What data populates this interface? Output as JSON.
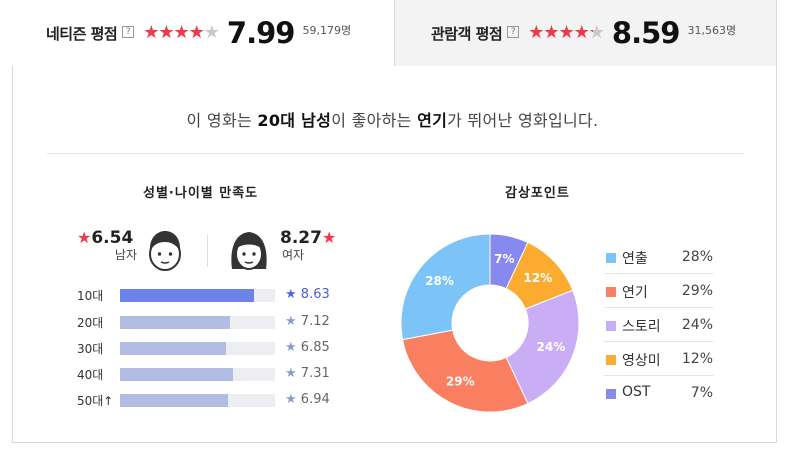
{
  "netizen": {
    "label": "네티즌 평점",
    "help": "?",
    "stars": "★★★★★",
    "rating": 7.99,
    "score": "7.99",
    "count": "59,179명"
  },
  "audience": {
    "label": "관람객 평점",
    "help": "?",
    "stars": "★★★★★",
    "rating": 8.59,
    "score": "8.59",
    "count": "31,563명"
  },
  "headline": {
    "pre": "이 영화는 ",
    "group": "20대 남성",
    "mid": "이 좋아하는 ",
    "point": "연기",
    "post": "가 뛰어난 영화입니다."
  },
  "satisfaction": {
    "title": "성별·나이별 만족도",
    "male": {
      "star": "★",
      "score": "6.54",
      "label": "남자"
    },
    "female": {
      "star": "★",
      "score": "8.27",
      "label": "여자"
    },
    "ages": [
      {
        "label": "10대",
        "star": "★",
        "score": "8.63",
        "value": 8.63,
        "top": true
      },
      {
        "label": "20대",
        "star": "★",
        "score": "7.12",
        "value": 7.12,
        "top": false
      },
      {
        "label": "30대",
        "star": "★",
        "score": "6.85",
        "value": 6.85,
        "top": false
      },
      {
        "label": "40대",
        "star": "★",
        "score": "7.31",
        "value": 7.31,
        "top": false
      },
      {
        "label": "50대↑",
        "star": "★",
        "score": "6.94",
        "value": 6.94,
        "top": false
      }
    ],
    "max": 10
  },
  "chart_data": {
    "type": "pie",
    "title": "감상포인트",
    "categories": [
      "연출",
      "연기",
      "스토리",
      "영상미",
      "OST"
    ],
    "values": [
      28,
      29,
      24,
      12,
      7
    ],
    "labels": [
      "28%",
      "29%",
      "24%",
      "12%",
      "7%"
    ],
    "legend": "right",
    "colors": [
      "#7cc3f7",
      "#fa7f60",
      "#c9aef6",
      "#fbab2f",
      "#8889ee"
    ],
    "start_clockwise_order": [
      "OST",
      "영상미",
      "스토리",
      "연기",
      "연출"
    ]
  },
  "colors": {
    "accent_red": "#f4384b",
    "bar_highlight": "#6c84ea",
    "bar_normal": "#b1bde3"
  }
}
